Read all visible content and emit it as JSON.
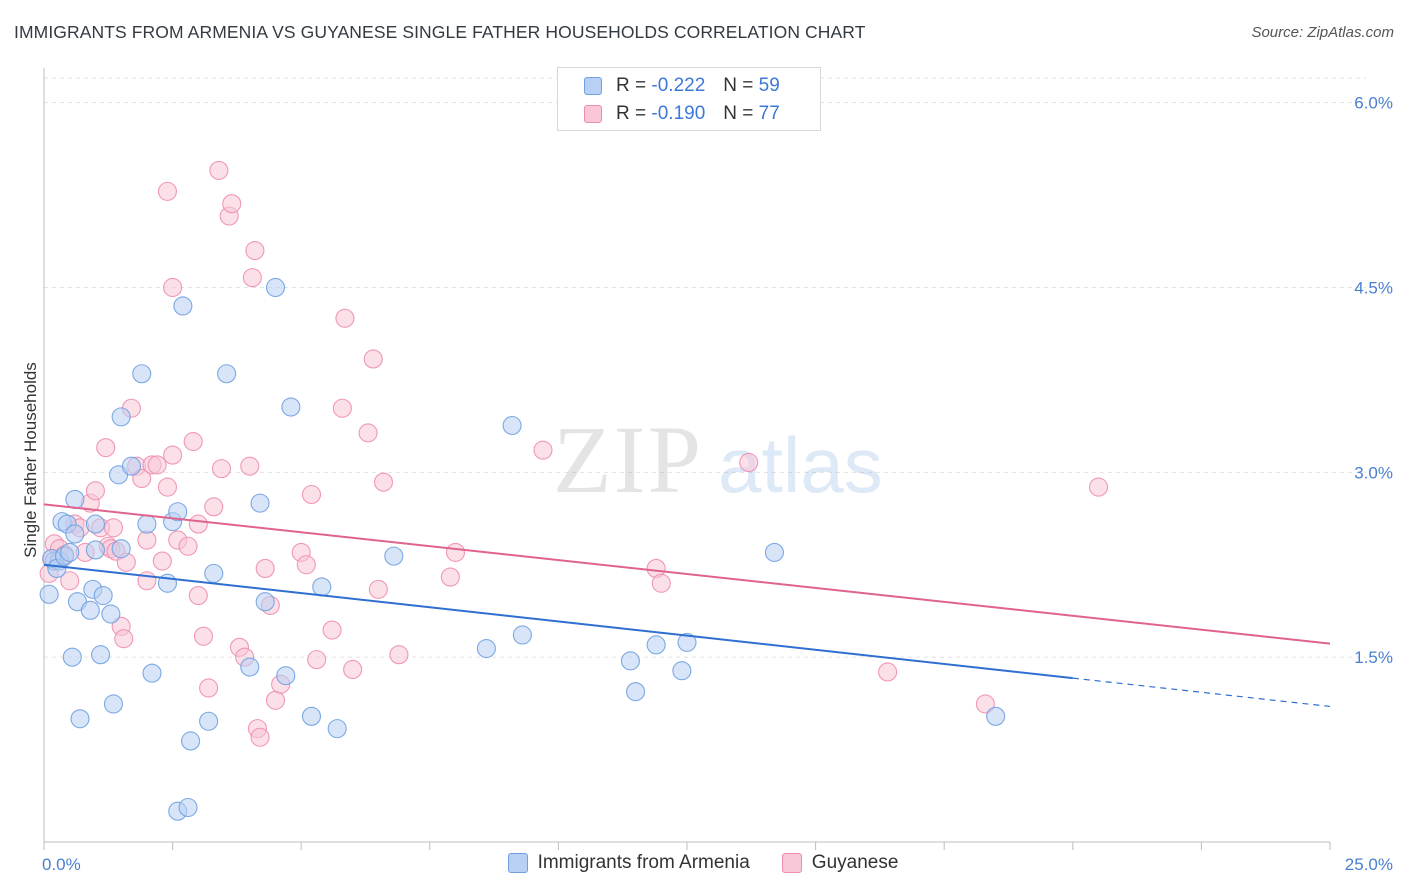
{
  "title": "IMMIGRANTS FROM ARMENIA VS GUYANESE SINGLE FATHER HOUSEHOLDS CORRELATION CHART",
  "source": "Source: ZipAtlas.com",
  "watermark": {
    "zip": "ZIP",
    "atlas": "atlas"
  },
  "legend": {
    "r_label": "R =",
    "n_label": "N =",
    "series1": {
      "r": "-0.222",
      "n": "59"
    },
    "series2": {
      "r": "-0.190",
      "n": "77"
    }
  },
  "bottom_legend": {
    "series1": "Immigrants from Armenia",
    "series2": "Guyanese"
  },
  "chart_data": {
    "type": "scatter",
    "title": "IMMIGRANTS FROM ARMENIA VS GUYANESE SINGLE FATHER HOUSEHOLDS CORRELATION CHART",
    "xlabel": "",
    "ylabel": "Single Father Households",
    "xlim": [
      0,
      25
    ],
    "ylim": [
      0,
      6.2
    ],
    "x_tick_labels": [
      "0.0%",
      "25.0%"
    ],
    "y_ticks": [
      1.5,
      3.0,
      4.5,
      6.0
    ],
    "y_tick_labels": [
      "1.5%",
      "3.0%",
      "4.5%",
      "6.0%"
    ],
    "colors": {
      "series1": "#6fa0e0",
      "series1_fill": "#b8d0f4",
      "series1_line": "#2f6fd1",
      "series2": "#ef8db0",
      "series2_fill": "#f8c6d6",
      "series2_line": "#e0628e"
    },
    "series": [
      {
        "name": "Immigrants from Armenia",
        "trend": {
          "x0": 0,
          "y0": 2.25,
          "x1": 20,
          "y1": 1.33,
          "dash_to_x": 25,
          "dash_to_y": 1.1
        },
        "points": [
          [
            0.1,
            2.01
          ],
          [
            0.2,
            2.28
          ],
          [
            0.3,
            2.28
          ],
          [
            0.35,
            2.6
          ],
          [
            0.45,
            2.58
          ],
          [
            0.55,
            1.5
          ],
          [
            0.6,
            2.5
          ],
          [
            0.6,
            2.78
          ],
          [
            0.65,
            1.95
          ],
          [
            0.7,
            1.0
          ],
          [
            0.9,
            1.88
          ],
          [
            0.95,
            2.05
          ],
          [
            1.0,
            2.58
          ],
          [
            1.0,
            2.37
          ],
          [
            1.1,
            1.52
          ],
          [
            1.15,
            2.0
          ],
          [
            1.3,
            1.85
          ],
          [
            1.35,
            1.12
          ],
          [
            1.5,
            2.38
          ],
          [
            1.45,
            2.98
          ],
          [
            1.5,
            3.45
          ],
          [
            1.7,
            3.05
          ],
          [
            1.9,
            3.8
          ],
          [
            2.0,
            2.58
          ],
          [
            2.1,
            1.37
          ],
          [
            2.4,
            2.1
          ],
          [
            2.5,
            2.6
          ],
          [
            2.6,
            2.68
          ],
          [
            2.7,
            4.35
          ],
          [
            2.6,
            0.25
          ],
          [
            2.8,
            0.28
          ],
          [
            2.85,
            0.82
          ],
          [
            3.2,
            0.98
          ],
          [
            3.3,
            2.18
          ],
          [
            3.55,
            3.8
          ],
          [
            4.0,
            1.42
          ],
          [
            4.2,
            2.75
          ],
          [
            4.3,
            1.95
          ],
          [
            4.5,
            4.5
          ],
          [
            4.7,
            1.35
          ],
          [
            4.8,
            3.53
          ],
          [
            5.2,
            1.02
          ],
          [
            5.4,
            2.07
          ],
          [
            5.7,
            0.92
          ],
          [
            6.8,
            2.32
          ],
          [
            8.6,
            1.57
          ],
          [
            9.1,
            3.38
          ],
          [
            9.3,
            1.68
          ],
          [
            11.4,
            1.47
          ],
          [
            11.5,
            1.22
          ],
          [
            11.9,
            1.6
          ],
          [
            12.4,
            1.39
          ],
          [
            12.5,
            1.62
          ],
          [
            14.2,
            2.35
          ],
          [
            18.5,
            1.02
          ],
          [
            0.15,
            2.3
          ],
          [
            0.25,
            2.22
          ],
          [
            0.4,
            2.32
          ],
          [
            0.5,
            2.35
          ]
        ]
      },
      {
        "name": "Guyanese",
        "trend": {
          "x0": 0,
          "y0": 2.74,
          "x1": 25,
          "y1": 1.61
        },
        "points": [
          [
            0.1,
            2.18
          ],
          [
            0.15,
            2.3
          ],
          [
            0.2,
            2.42
          ],
          [
            0.3,
            2.38
          ],
          [
            0.4,
            2.33
          ],
          [
            0.5,
            2.12
          ],
          [
            0.6,
            2.58
          ],
          [
            0.7,
            2.55
          ],
          [
            0.8,
            2.35
          ],
          [
            0.9,
            2.75
          ],
          [
            1.0,
            2.85
          ],
          [
            1.1,
            2.55
          ],
          [
            1.2,
            3.2
          ],
          [
            1.25,
            2.4
          ],
          [
            1.3,
            2.38
          ],
          [
            1.35,
            2.55
          ],
          [
            1.4,
            2.36
          ],
          [
            1.5,
            1.75
          ],
          [
            1.55,
            1.65
          ],
          [
            1.6,
            2.27
          ],
          [
            1.7,
            3.52
          ],
          [
            1.8,
            3.05
          ],
          [
            1.9,
            2.95
          ],
          [
            2.0,
            2.12
          ],
          [
            2.0,
            2.45
          ],
          [
            2.1,
            3.06
          ],
          [
            2.2,
            3.06
          ],
          [
            2.3,
            2.28
          ],
          [
            2.4,
            2.88
          ],
          [
            2.4,
            5.28
          ],
          [
            2.5,
            4.5
          ],
          [
            2.5,
            3.14
          ],
          [
            2.6,
            2.45
          ],
          [
            2.8,
            2.4
          ],
          [
            2.9,
            3.25
          ],
          [
            3.0,
            2.58
          ],
          [
            3.0,
            2.0
          ],
          [
            3.1,
            1.67
          ],
          [
            3.2,
            1.25
          ],
          [
            3.3,
            2.72
          ],
          [
            3.4,
            5.45
          ],
          [
            3.45,
            3.03
          ],
          [
            3.6,
            5.08
          ],
          [
            3.65,
            5.18
          ],
          [
            3.8,
            1.58
          ],
          [
            3.9,
            1.5
          ],
          [
            4.0,
            3.05
          ],
          [
            4.05,
            4.58
          ],
          [
            4.1,
            4.8
          ],
          [
            4.15,
            0.92
          ],
          [
            4.2,
            0.85
          ],
          [
            4.3,
            2.22
          ],
          [
            4.4,
            1.92
          ],
          [
            4.5,
            1.15
          ],
          [
            4.6,
            1.28
          ],
          [
            5.0,
            2.35
          ],
          [
            5.1,
            2.25
          ],
          [
            5.2,
            2.82
          ],
          [
            5.3,
            1.48
          ],
          [
            5.6,
            1.72
          ],
          [
            5.8,
            3.52
          ],
          [
            5.85,
            4.25
          ],
          [
            6.0,
            1.4
          ],
          [
            6.3,
            3.32
          ],
          [
            6.4,
            3.92
          ],
          [
            6.5,
            2.05
          ],
          [
            6.6,
            2.92
          ],
          [
            6.9,
            1.52
          ],
          [
            7.9,
            2.15
          ],
          [
            8.0,
            2.35
          ],
          [
            9.7,
            3.18
          ],
          [
            11.9,
            2.22
          ],
          [
            12.0,
            2.1
          ],
          [
            13.7,
            3.08
          ],
          [
            16.4,
            1.38
          ],
          [
            18.3,
            1.12
          ],
          [
            20.5,
            2.88
          ]
        ]
      }
    ]
  }
}
